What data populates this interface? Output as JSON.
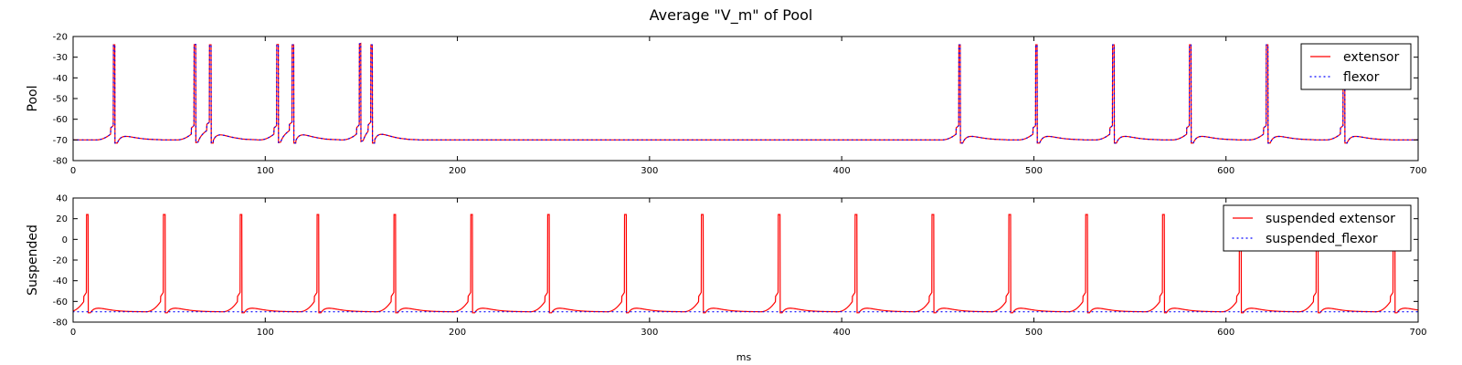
{
  "figure": {
    "title": "Average \"V_m\" of Pool",
    "xlabel": "ms"
  },
  "chart_data": [
    {
      "type": "line",
      "ylabel": "Pool",
      "xlim": [
        0,
        700
      ],
      "ylim": [
        -80,
        -20
      ],
      "xticks": [
        0,
        100,
        200,
        300,
        400,
        500,
        600,
        700
      ],
      "yticks": [
        -80,
        -70,
        -60,
        -50,
        -40,
        -30,
        -20
      ],
      "grid": false,
      "legend_position": "top-right",
      "resting_potential": -70,
      "series": [
        {
          "name": "extensor",
          "color": "#ff0000",
          "style": "solid",
          "spike_times": [
            21,
            63,
            71,
            106,
            114,
            149,
            155,
            461,
            501,
            541,
            581,
            621,
            661
          ]
        },
        {
          "name": "flexor",
          "color": "#0000ff",
          "style": "dotted",
          "spike_times": [
            21,
            63,
            71,
            106,
            114,
            149,
            155,
            461,
            501,
            541,
            581,
            621,
            661
          ]
        }
      ]
    },
    {
      "type": "line",
      "ylabel": "Suspended",
      "xlim": [
        0,
        700
      ],
      "ylim": [
        -80,
        40
      ],
      "xticks": [
        0,
        100,
        200,
        300,
        400,
        500,
        600,
        700
      ],
      "yticks": [
        -80,
        -60,
        -40,
        -20,
        0,
        20,
        40
      ],
      "grid": false,
      "legend_position": "top-right",
      "resting_potential": -70,
      "series": [
        {
          "name": "suspended extensor",
          "color": "#ff0000",
          "style": "solid",
          "spike_peak": 24,
          "spike_times": [
            7,
            47,
            87,
            127,
            167,
            207,
            247,
            287,
            327,
            367,
            407,
            447,
            487,
            527,
            567,
            607,
            647,
            687
          ]
        },
        {
          "name": "suspended_flexor",
          "color": "#0000ff",
          "style": "dotted",
          "constant_value": -70
        }
      ]
    }
  ]
}
